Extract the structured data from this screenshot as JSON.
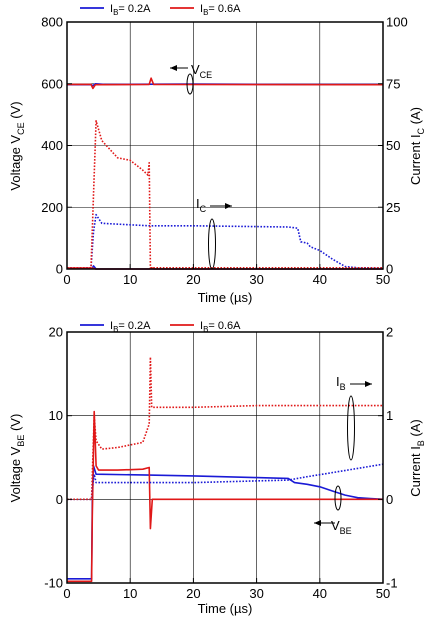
{
  "chart_data": [
    {
      "type": "line",
      "xlabel": "Time (µs)",
      "ylabel_left": {
        "main": "Voltage V",
        "sub": "CE",
        "unit": " (V)"
      },
      "ylabel_right": {
        "main": "Current I",
        "sub": "C",
        "unit": " (A)"
      },
      "xlim": [
        0,
        50
      ],
      "ylim_left": [
        0,
        800
      ],
      "ylim_right": [
        0,
        100
      ],
      "xticks": [
        "0",
        "10",
        "20",
        "30",
        "40",
        "50"
      ],
      "yticks_left": [
        "0",
        "200",
        "400",
        "600",
        "800"
      ],
      "yticks_right": [
        "0",
        "25",
        "50",
        "75",
        "100"
      ],
      "grid": true,
      "legend_position": "top",
      "legend": [
        {
          "main": "I",
          "sub": "B",
          "value": "= 0.2A",
          "color": "#1a1ad6"
        },
        {
          "main": "I",
          "sub": "B",
          "value": "= 0.6A",
          "color": "#e01818"
        }
      ],
      "annotations": [
        {
          "main": "V",
          "sub": "CE"
        },
        {
          "main": "I",
          "sub": "C"
        }
      ],
      "series": [
        {
          "legend_index": 0,
          "axis": "left",
          "style": "solid",
          "points": [
            [
              0,
              597
            ],
            [
              3.8,
              597
            ],
            [
              4.1,
              594
            ],
            [
              4.5,
              600
            ],
            [
              6,
              598
            ],
            [
              20,
              599
            ],
            [
              35,
              598
            ],
            [
              50,
              598
            ]
          ]
        },
        {
          "legend_index": 1,
          "axis": "left",
          "style": "solid",
          "points": [
            [
              0,
              598
            ],
            [
              3.8,
              598
            ],
            [
              4.1,
              585
            ],
            [
              4.5,
              597
            ],
            [
              13,
              598
            ],
            [
              13.3,
              618
            ],
            [
              13.7,
              598
            ],
            [
              50,
              597
            ]
          ]
        },
        {
          "legend_index": 0,
          "axis": "left",
          "style": "solid",
          "points": [
            [
              0,
              2
            ],
            [
              4,
              2
            ],
            [
              4.2,
              10
            ],
            [
              4.6,
              0
            ],
            [
              50,
              0
            ]
          ]
        },
        {
          "legend_index": 1,
          "axis": "left",
          "style": "solid",
          "points": [
            [
              0,
              3
            ],
            [
              4,
              3
            ],
            [
              4.5,
              0
            ],
            [
              13,
              0
            ],
            [
              13.4,
              4
            ],
            [
              13.8,
              0
            ],
            [
              30,
              0
            ],
            [
              50,
              0
            ]
          ]
        },
        {
          "legend_index": 0,
          "axis": "right",
          "style": "dotted",
          "points": [
            [
              0,
              0.5
            ],
            [
              3.8,
              0.5
            ],
            [
              4.2,
              15
            ],
            [
              4.6,
              22
            ],
            [
              5.5,
              18.5
            ],
            [
              13,
              17.5
            ],
            [
              20,
              17.5
            ],
            [
              35,
              17
            ],
            [
              36.5,
              16.5
            ],
            [
              37,
              11
            ],
            [
              38,
              10.5
            ],
            [
              38.5,
              9
            ],
            [
              40,
              7.5
            ],
            [
              42,
              4
            ],
            [
              44,
              1
            ],
            [
              46,
              0.5
            ],
            [
              50,
              0.3
            ]
          ]
        },
        {
          "legend_index": 1,
          "axis": "right",
          "style": "dotted",
          "points": [
            [
              0,
              0.5
            ],
            [
              3.8,
              0.5
            ],
            [
              4.2,
              30
            ],
            [
              4.6,
              60
            ],
            [
              5.5,
              52
            ],
            [
              8,
              45
            ],
            [
              10,
              44
            ],
            [
              12,
              40
            ],
            [
              12.8,
              38
            ],
            [
              13,
              43
            ],
            [
              13.2,
              0.5
            ],
            [
              50,
              0.5
            ]
          ]
        }
      ]
    },
    {
      "type": "line",
      "xlabel": "Time (µs)",
      "ylabel_left": {
        "main": "Voltage V",
        "sub": "BE",
        "unit": " (V)"
      },
      "ylabel_right": {
        "main": "Current I",
        "sub": "B",
        "unit": " (A)"
      },
      "xlim": [
        0,
        50
      ],
      "ylim_left": [
        -10,
        20
      ],
      "ylim_right": [
        -1,
        2
      ],
      "xticks": [
        "0",
        "10",
        "20",
        "30",
        "40",
        "50"
      ],
      "yticks_left": [
        "-10",
        "0",
        "10",
        "20"
      ],
      "yticks_right": [
        "-1",
        "0",
        "1",
        "2"
      ],
      "grid": true,
      "legend_position": "top",
      "legend": [
        {
          "main": "I",
          "sub": "B",
          "value": "= 0.2A",
          "color": "#1a1ad6"
        },
        {
          "main": "I",
          "sub": "B",
          "value": "= 0.6A",
          "color": "#e01818"
        }
      ],
      "annotations": [
        {
          "main": "I",
          "sub": "B"
        },
        {
          "main": "V",
          "sub": "BE"
        }
      ],
      "series": [
        {
          "legend_index": 0,
          "axis": "left",
          "style": "solid",
          "points": [
            [
              0,
              -9.5
            ],
            [
              3.9,
              -9.5
            ],
            [
              4,
              0
            ],
            [
              4.2,
              4
            ],
            [
              4.6,
              3
            ],
            [
              13,
              2.9
            ],
            [
              20,
              2.8
            ],
            [
              30,
              2.6
            ],
            [
              35,
              2.5
            ],
            [
              36,
              2
            ],
            [
              38,
              1.8
            ],
            [
              40,
              1.5
            ],
            [
              42,
              1
            ],
            [
              44,
              0.5
            ],
            [
              46,
              0.2
            ],
            [
              48,
              0.1
            ],
            [
              50,
              0
            ]
          ]
        },
        {
          "legend_index": 1,
          "axis": "left",
          "style": "solid",
          "points": [
            [
              0,
              -9.8
            ],
            [
              3.9,
              -9.8
            ],
            [
              4,
              -2
            ],
            [
              4.3,
              10.5
            ],
            [
              4.6,
              4
            ],
            [
              5,
              3.5
            ],
            [
              8,
              3.5
            ],
            [
              12,
              3.6
            ],
            [
              13,
              3.8
            ],
            [
              13.2,
              -3.5
            ],
            [
              13.5,
              0
            ],
            [
              15,
              0
            ],
            [
              30,
              0
            ],
            [
              50,
              0
            ]
          ]
        },
        {
          "legend_index": 0,
          "axis": "right",
          "style": "dotted",
          "points": [
            [
              0,
              0
            ],
            [
              3.9,
              0
            ],
            [
              4,
              0.15
            ],
            [
              4.3,
              0.3
            ],
            [
              4.6,
              0.2
            ],
            [
              10,
              0.2
            ],
            [
              20,
              0.2
            ],
            [
              30,
              0.22
            ],
            [
              35,
              0.23
            ],
            [
              38,
              0.27
            ],
            [
              42,
              0.32
            ],
            [
              46,
              0.37
            ],
            [
              50,
              0.42
            ]
          ]
        },
        {
          "legend_index": 1,
          "axis": "right",
          "style": "dotted",
          "points": [
            [
              0,
              0
            ],
            [
              3.9,
              0
            ],
            [
              4,
              0.3
            ],
            [
              4.3,
              1.0
            ],
            [
              4.6,
              0.7
            ],
            [
              5.5,
              0.6
            ],
            [
              8,
              0.62
            ],
            [
              12,
              0.68
            ],
            [
              13,
              0.9
            ],
            [
              13.2,
              1.7
            ],
            [
              13.4,
              1.1
            ],
            [
              15,
              1.1
            ],
            [
              20,
              1.1
            ],
            [
              30,
              1.12
            ],
            [
              40,
              1.12
            ],
            [
              50,
              1.12
            ]
          ]
        }
      ]
    }
  ]
}
